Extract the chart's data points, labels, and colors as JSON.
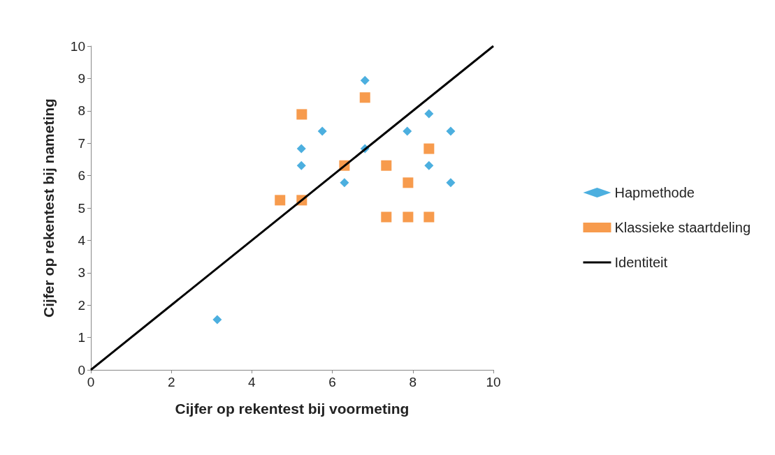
{
  "chart_data": {
    "type": "scatter",
    "xlabel": "Cijfer op rekentest bij voormeting",
    "ylabel": "Cijfer op rekentest bij nameting",
    "xlim": [
      0,
      10
    ],
    "xticks": [
      0,
      2,
      4,
      6,
      8,
      10
    ],
    "ylim": [
      0,
      10
    ],
    "yticks": [
      0,
      1,
      2,
      3,
      4,
      5,
      6,
      7,
      8,
      9,
      10
    ],
    "grid": false,
    "legend": "right",
    "series": [
      {
        "name": "Hapmethode",
        "color": "#1f9bd7",
        "marker": "diamond",
        "x": [
          3.14,
          5.23,
          5.23,
          5.75,
          6.3,
          6.81,
          6.81,
          7.86,
          8.4,
          8.4,
          8.94,
          8.94
        ],
        "values": [
          1.55,
          6.83,
          6.31,
          7.37,
          5.78,
          8.94,
          6.83,
          7.37,
          7.91,
          6.31,
          7.37,
          5.78
        ]
      },
      {
        "name": "Klassieke staartdeling",
        "color": "#f58220",
        "marker": "square",
        "x": [
          4.7,
          5.24,
          5.24,
          6.81,
          6.3,
          7.34,
          7.34,
          7.88,
          7.88,
          8.4,
          8.4
        ],
        "values": [
          5.24,
          7.89,
          5.24,
          8.41,
          6.31,
          6.31,
          4.72,
          5.78,
          4.72,
          6.83,
          4.72
        ]
      },
      {
        "name": "Identiteit",
        "type": "line",
        "color": "#000000",
        "marker": "none",
        "line_style": "solid",
        "x": [
          0,
          10
        ],
        "values": [
          0,
          10
        ]
      }
    ]
  }
}
